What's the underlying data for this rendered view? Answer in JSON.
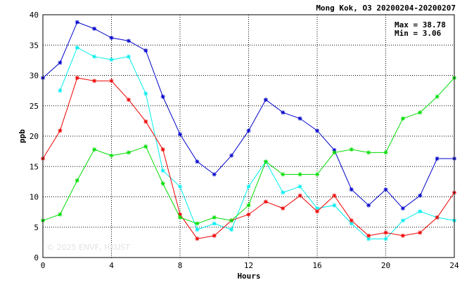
{
  "chart_data": {
    "type": "line",
    "title": "Mong Kok, O3 20200204-20200207",
    "xlabel": "Hours",
    "ylabel": "ppb",
    "xlim": [
      0,
      24
    ],
    "ylim": [
      0,
      40
    ],
    "xticks": [
      0,
      4,
      8,
      12,
      16,
      20,
      24
    ],
    "yticks": [
      0,
      5,
      10,
      15,
      20,
      25,
      30,
      35,
      40
    ],
    "grid": true,
    "stats": {
      "max_label": "Max = 38.78",
      "min_label": "Min =  3.06"
    },
    "watermark": "© 2025  ENVF, HKUST",
    "series": [
      {
        "color": "#0000cc",
        "x": [
          0,
          1,
          2,
          3,
          4,
          5,
          6,
          7,
          8,
          9,
          10,
          11,
          12,
          13,
          14,
          15,
          16,
          17,
          18,
          19,
          20,
          21,
          22,
          23,
          24
        ],
        "values": [
          29.6,
          32.1,
          38.78,
          37.7,
          36.2,
          35.7,
          34.1,
          26.5,
          20.3,
          15.8,
          13.7,
          16.8,
          20.9,
          26.0,
          23.9,
          22.9,
          20.9,
          17.7,
          11.2,
          8.6,
          11.2,
          8.1,
          10.2,
          16.3,
          16.3
        ]
      },
      {
        "color": "#00eeee",
        "x": [
          1,
          2,
          3,
          4,
          5,
          6,
          7,
          8,
          9,
          10,
          11,
          12,
          13,
          14,
          15,
          16,
          17,
          18,
          19,
          20,
          21,
          22,
          23,
          24
        ],
        "values": [
          27.5,
          34.6,
          33.1,
          32.6,
          33.1,
          27.0,
          14.3,
          11.7,
          4.6,
          5.6,
          4.6,
          11.7,
          15.8,
          10.7,
          11.7,
          8.1,
          8.6,
          5.6,
          3.06,
          3.06,
          6.1,
          7.6,
          6.6,
          6.1
        ]
      },
      {
        "color": "#ee0000",
        "x": [
          0,
          1,
          2,
          3,
          4,
          5,
          6,
          7,
          8,
          9,
          10,
          11,
          12,
          13,
          14,
          15,
          16,
          17,
          18,
          19,
          20,
          21,
          22,
          23,
          24
        ],
        "values": [
          16.3,
          20.9,
          29.6,
          29.1,
          29.1,
          26.0,
          22.4,
          17.8,
          7.1,
          3.1,
          3.6,
          6.1,
          7.1,
          9.2,
          8.1,
          10.2,
          7.6,
          10.2,
          6.1,
          3.6,
          4.1,
          3.6,
          4.1,
          6.6,
          10.7
        ]
      },
      {
        "color": "#00dd00",
        "x": [
          0,
          1,
          2,
          3,
          4,
          5,
          6,
          7,
          8,
          9,
          10,
          11,
          12,
          13,
          14,
          15,
          16,
          17,
          18,
          19,
          20,
          21,
          22,
          23,
          24
        ],
        "values": [
          6.1,
          7.1,
          12.7,
          17.8,
          16.8,
          17.3,
          18.3,
          12.2,
          6.6,
          5.6,
          6.6,
          6.1,
          8.6,
          15.8,
          13.7,
          13.7,
          13.7,
          17.3,
          17.8,
          17.3,
          17.3,
          22.9,
          23.9,
          26.5,
          29.6
        ]
      }
    ]
  }
}
